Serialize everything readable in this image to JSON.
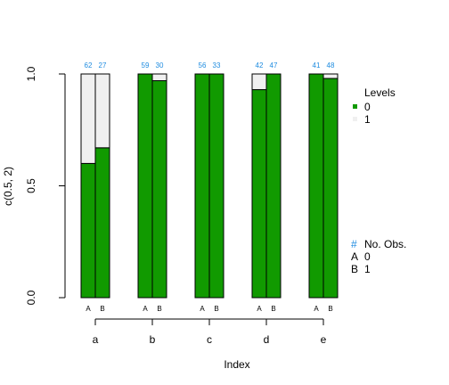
{
  "chart_data": {
    "type": "bar",
    "xlabel": "Index",
    "ylabel": "c(0.5, 2)",
    "ylim": [
      0,
      1
    ],
    "yticks": [
      "0.0",
      "0.5",
      "1.0"
    ],
    "categories": [
      "a",
      "b",
      "c",
      "d",
      "e"
    ],
    "sub_categories": [
      "A",
      "B"
    ],
    "stacked_proportion": true,
    "series": [
      {
        "name": "0",
        "color": "#119a00",
        "values": [
          [
            0.6,
            0.67
          ],
          [
            1.0,
            0.97
          ],
          [
            1.0,
            1.0
          ],
          [
            0.93,
            1.0
          ],
          [
            1.0,
            0.98
          ]
        ]
      },
      {
        "name": "1",
        "color": "#f0f0f0",
        "values": [
          [
            0.4,
            0.33
          ],
          [
            0.0,
            0.03
          ],
          [
            0.0,
            0.0
          ],
          [
            0.07,
            0.0
          ],
          [
            0.0,
            0.02
          ]
        ]
      }
    ],
    "counts": [
      [
        62,
        27
      ],
      [
        59,
        30
      ],
      [
        56,
        33
      ],
      [
        42,
        47
      ],
      [
        41,
        48
      ]
    ],
    "legend": {
      "levels_title": "Levels",
      "levels": [
        {
          "label": "0",
          "color": "#119a00"
        },
        {
          "label": "1",
          "color": "#f0f0f0"
        }
      ],
      "obs_symbol": "#",
      "obs_title": "No. Obs.",
      "obs": [
        {
          "key": "A",
          "label": "0"
        },
        {
          "key": "B",
          "label": "1"
        }
      ]
    }
  }
}
